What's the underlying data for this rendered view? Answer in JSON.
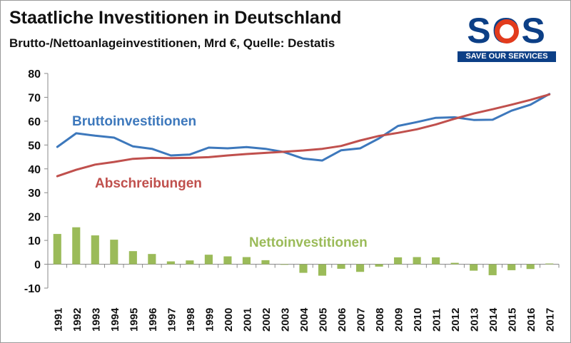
{
  "title": "Staatliche Investitionen in Deutschland",
  "subtitle": "Brutto-/Nettoanlageinvestitionen, Mrd €, Quelle: Destatis",
  "logo": {
    "letters": "SOS",
    "tagline": "SAVE OUR SERVICES",
    "colors": {
      "blue": "#0c3f86",
      "red": "#e23b1d"
    }
  },
  "chart_data": {
    "type": "line",
    "categories": [
      "1991",
      "1992",
      "1993",
      "1994",
      "1995",
      "1996",
      "1997",
      "1998",
      "1999",
      "2000",
      "2001",
      "2002",
      "2003",
      "2004",
      "2005",
      "2006",
      "2007",
      "2008",
      "2009",
      "2010",
      "2011",
      "2012",
      "2013",
      "2014",
      "2015",
      "2016",
      "2017"
    ],
    "series": [
      {
        "name": "Bruttoinvestitionen",
        "kind": "line",
        "color": "#3d78bc",
        "values": [
          49.2,
          54.9,
          53.9,
          53.1,
          49.4,
          48.4,
          45.6,
          46.0,
          48.9,
          48.6,
          49.1,
          48.4,
          47.0,
          44.3,
          43.5,
          47.8,
          48.6,
          52.8,
          58.0,
          59.6,
          61.4,
          61.6,
          60.5,
          60.6,
          64.4,
          66.9,
          71.4
        ]
      },
      {
        "name": "Abschreibungen",
        "kind": "line",
        "color": "#c0504d",
        "values": [
          36.9,
          39.6,
          41.8,
          42.9,
          44.2,
          44.6,
          44.5,
          44.6,
          44.9,
          45.6,
          46.2,
          46.7,
          47.2,
          47.7,
          48.4,
          49.6,
          51.9,
          53.8,
          55.1,
          56.6,
          58.6,
          61.0,
          63.2,
          65.0,
          66.9,
          68.9,
          71.2
        ]
      },
      {
        "name": "Nettoinvestitionen",
        "kind": "bar",
        "color": "#9bbb59",
        "values": [
          12.7,
          15.5,
          12.1,
          10.3,
          5.5,
          4.3,
          1.2,
          1.6,
          4.0,
          3.3,
          3.0,
          1.7,
          -0.2,
          -3.6,
          -4.8,
          -1.9,
          -3.2,
          -1.0,
          2.9,
          3.0,
          2.9,
          0.6,
          -2.7,
          -4.6,
          -2.5,
          -2.0,
          0.3
        ]
      }
    ],
    "annotations": [
      {
        "text": "Bruttoinvestitionen",
        "color": "#3d78bc"
      },
      {
        "text": "Abschreibungen",
        "color": "#c0504d"
      },
      {
        "text": "Nettoinvestitionen",
        "color": "#9bbb59"
      }
    ],
    "y_ticks": [
      "-10",
      "0",
      "10",
      "20",
      "30",
      "40",
      "50",
      "60",
      "70",
      "80"
    ],
    "ylim": [
      -10,
      80
    ],
    "xlabel": "",
    "ylabel": "",
    "grid": false,
    "legend": "none"
  }
}
